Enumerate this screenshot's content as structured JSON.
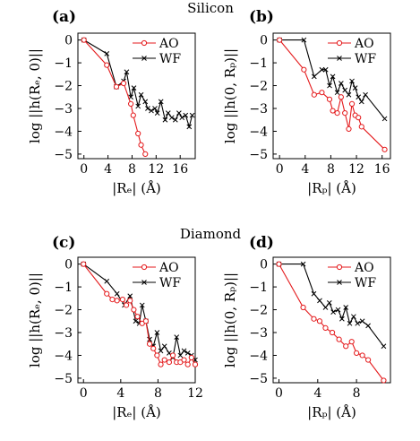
{
  "figure": {
    "row_titles": [
      "Silicon",
      "Diamond"
    ]
  },
  "chart_data": [
    {
      "type": "line",
      "panel_label": "(a)",
      "row": "Silicon",
      "ylabel": "log ||h(Rₑ, 0)||",
      "xlabel": "|Rₑ| (Å)",
      "xlim": [
        -1,
        18.5
      ],
      "ylim": [
        -5.2,
        0.3
      ],
      "xticks": [
        0,
        4,
        8,
        12,
        16
      ],
      "yticks": [
        0,
        -1,
        -2,
        -3,
        -4,
        -5
      ],
      "legend_position": "top-right",
      "series": [
        {
          "name": "AO",
          "color": "#e41a1c",
          "marker": "circle",
          "x": [
            0,
            3.8,
            5.4,
            6.6,
            7.8,
            8.2,
            9.0,
            9.5,
            10.2
          ],
          "y": [
            0,
            -1.1,
            -2.05,
            -1.9,
            -2.8,
            -3.3,
            -4.1,
            -4.6,
            -5.0
          ]
        },
        {
          "name": "WF",
          "color": "#000000",
          "marker": "x",
          "x": [
            0,
            3.8,
            5.4,
            6.6,
            7.1,
            7.8,
            8.3,
            9.0,
            9.5,
            10.2,
            10.6,
            11.2,
            11.8,
            12.2,
            12.8,
            13.5,
            14.0,
            14.6,
            15.2,
            15.8,
            16.3,
            16.9,
            17.5,
            18.0
          ],
          "y": [
            0,
            -0.6,
            -2.05,
            -1.8,
            -1.4,
            -2.5,
            -2.1,
            -2.9,
            -2.4,
            -2.7,
            -3.0,
            -3.1,
            -3.0,
            -3.2,
            -2.7,
            -3.5,
            -3.2,
            -3.4,
            -3.5,
            -3.2,
            -3.4,
            -3.3,
            -3.8,
            -3.3
          ]
        }
      ]
    },
    {
      "type": "line",
      "panel_label": "(b)",
      "row": "Silicon",
      "ylabel": "log ||h(0, Rₚ)||",
      "xlabel": "|Rₚ| (Å)",
      "xlim": [
        -1,
        17.3
      ],
      "ylim": [
        -5.2,
        0.3
      ],
      "xticks": [
        0,
        4,
        8,
        12,
        16
      ],
      "yticks": [
        0,
        -1,
        -2,
        -3,
        -4,
        -5
      ],
      "legend_position": "top-right",
      "series": [
        {
          "name": "AO",
          "color": "#e41a1c",
          "marker": "circle",
          "x": [
            0,
            3.8,
            5.4,
            6.6,
            7.8,
            8.3,
            9.0,
            9.6,
            10.2,
            10.8,
            11.3,
            11.8,
            12.3,
            12.8,
            16.4
          ],
          "y": [
            0,
            -1.3,
            -2.4,
            -2.3,
            -2.6,
            -3.1,
            -3.2,
            -2.5,
            -3.2,
            -3.9,
            -2.8,
            -3.3,
            -3.4,
            -3.8,
            -4.8
          ]
        },
        {
          "name": "WF",
          "color": "#000000",
          "marker": "x",
          "x": [
            0,
            3.8,
            5.4,
            6.6,
            7.2,
            7.8,
            8.3,
            9.0,
            9.6,
            10.2,
            10.8,
            11.3,
            11.8,
            12.3,
            12.8,
            13.4,
            16.4
          ],
          "y": [
            0,
            0,
            -1.6,
            -1.3,
            -1.3,
            -2.0,
            -1.6,
            -2.3,
            -1.9,
            -2.2,
            -2.4,
            -1.8,
            -2.1,
            -2.5,
            -2.7,
            -2.4,
            -3.45
          ]
        }
      ]
    },
    {
      "type": "line",
      "panel_label": "(c)",
      "row": "Diamond",
      "ylabel": "log ||h(Rₑ, 0)||",
      "xlabel": "|Rₑ| (Å)",
      "xlim": [
        -0.6,
        12
      ],
      "ylim": [
        -5.2,
        0.3
      ],
      "xticks": [
        0,
        4,
        8,
        12
      ],
      "yticks": [
        0,
        -1,
        -2,
        -3,
        -4,
        -5
      ],
      "legend_position": "top-right",
      "series": [
        {
          "name": "AO",
          "color": "#e41a1c",
          "marker": "circle",
          "x": [
            0,
            2.5,
            3.1,
            3.6,
            4.2,
            4.6,
            5.0,
            5.4,
            5.8,
            6.3,
            6.7,
            7.1,
            7.5,
            7.9,
            8.3,
            8.7,
            9.2,
            9.6,
            10.0,
            10.4,
            10.8,
            11.2,
            11.6,
            12.0
          ],
          "y": [
            0,
            -1.3,
            -1.55,
            -1.6,
            -1.55,
            -1.8,
            -1.6,
            -2.0,
            -2.3,
            -2.6,
            -2.5,
            -3.5,
            -3.7,
            -4.0,
            -4.4,
            -4.2,
            -4.3,
            -4.0,
            -4.3,
            -4.3,
            -4.2,
            -4.4,
            -4.1,
            -4.4
          ]
        },
        {
          "name": "WF",
          "color": "#000000",
          "marker": "x",
          "x": [
            0,
            2.5,
            3.6,
            4.4,
            5.0,
            5.6,
            6.0,
            6.3,
            6.7,
            7.1,
            7.5,
            7.9,
            8.3,
            8.7,
            9.2,
            9.6,
            10.0,
            10.4,
            10.8,
            11.2,
            11.6,
            12.0
          ],
          "y": [
            0,
            -0.75,
            -1.3,
            -1.8,
            -1.4,
            -2.5,
            -2.6,
            -1.8,
            -2.5,
            -3.3,
            -3.6,
            -3.0,
            -3.8,
            -3.6,
            -3.9,
            -4.1,
            -3.2,
            -4.0,
            -3.8,
            -3.9,
            -4.0,
            -4.2
          ]
        }
      ]
    },
    {
      "type": "line",
      "panel_label": "(d)",
      "row": "Diamond",
      "ylabel": "log ||h(0, Rₚ)||",
      "xlabel": "|Rₚ| (Å)",
      "xlim": [
        -0.6,
        11.5
      ],
      "ylim": [
        -5.2,
        0.3
      ],
      "xticks": [
        0,
        4,
        8
      ],
      "yticks": [
        0,
        -1,
        -2,
        -3,
        -4,
        -5
      ],
      "legend_position": "top-right",
      "series": [
        {
          "name": "AO",
          "color": "#e41a1c",
          "marker": "circle",
          "x": [
            0,
            2.5,
            3.6,
            4.2,
            4.8,
            5.5,
            6.2,
            6.9,
            7.5,
            8.0,
            8.6,
            9.2,
            10.8
          ],
          "y": [
            0,
            -1.9,
            -2.4,
            -2.5,
            -2.8,
            -3.0,
            -3.3,
            -3.6,
            -3.4,
            -3.9,
            -4.0,
            -4.2,
            -5.1
          ]
        },
        {
          "name": "WF",
          "color": "#000000",
          "marker": "x",
          "x": [
            0,
            2.5,
            3.6,
            4.2,
            4.8,
            5.2,
            5.6,
            6.1,
            6.5,
            6.9,
            7.3,
            7.7,
            8.1,
            8.6,
            9.2,
            10.8
          ],
          "y": [
            0,
            0,
            -1.3,
            -1.6,
            -1.9,
            -1.7,
            -2.1,
            -2.0,
            -2.4,
            -1.9,
            -2.6,
            -2.3,
            -2.6,
            -2.5,
            -2.7,
            -3.6
          ]
        }
      ]
    }
  ]
}
